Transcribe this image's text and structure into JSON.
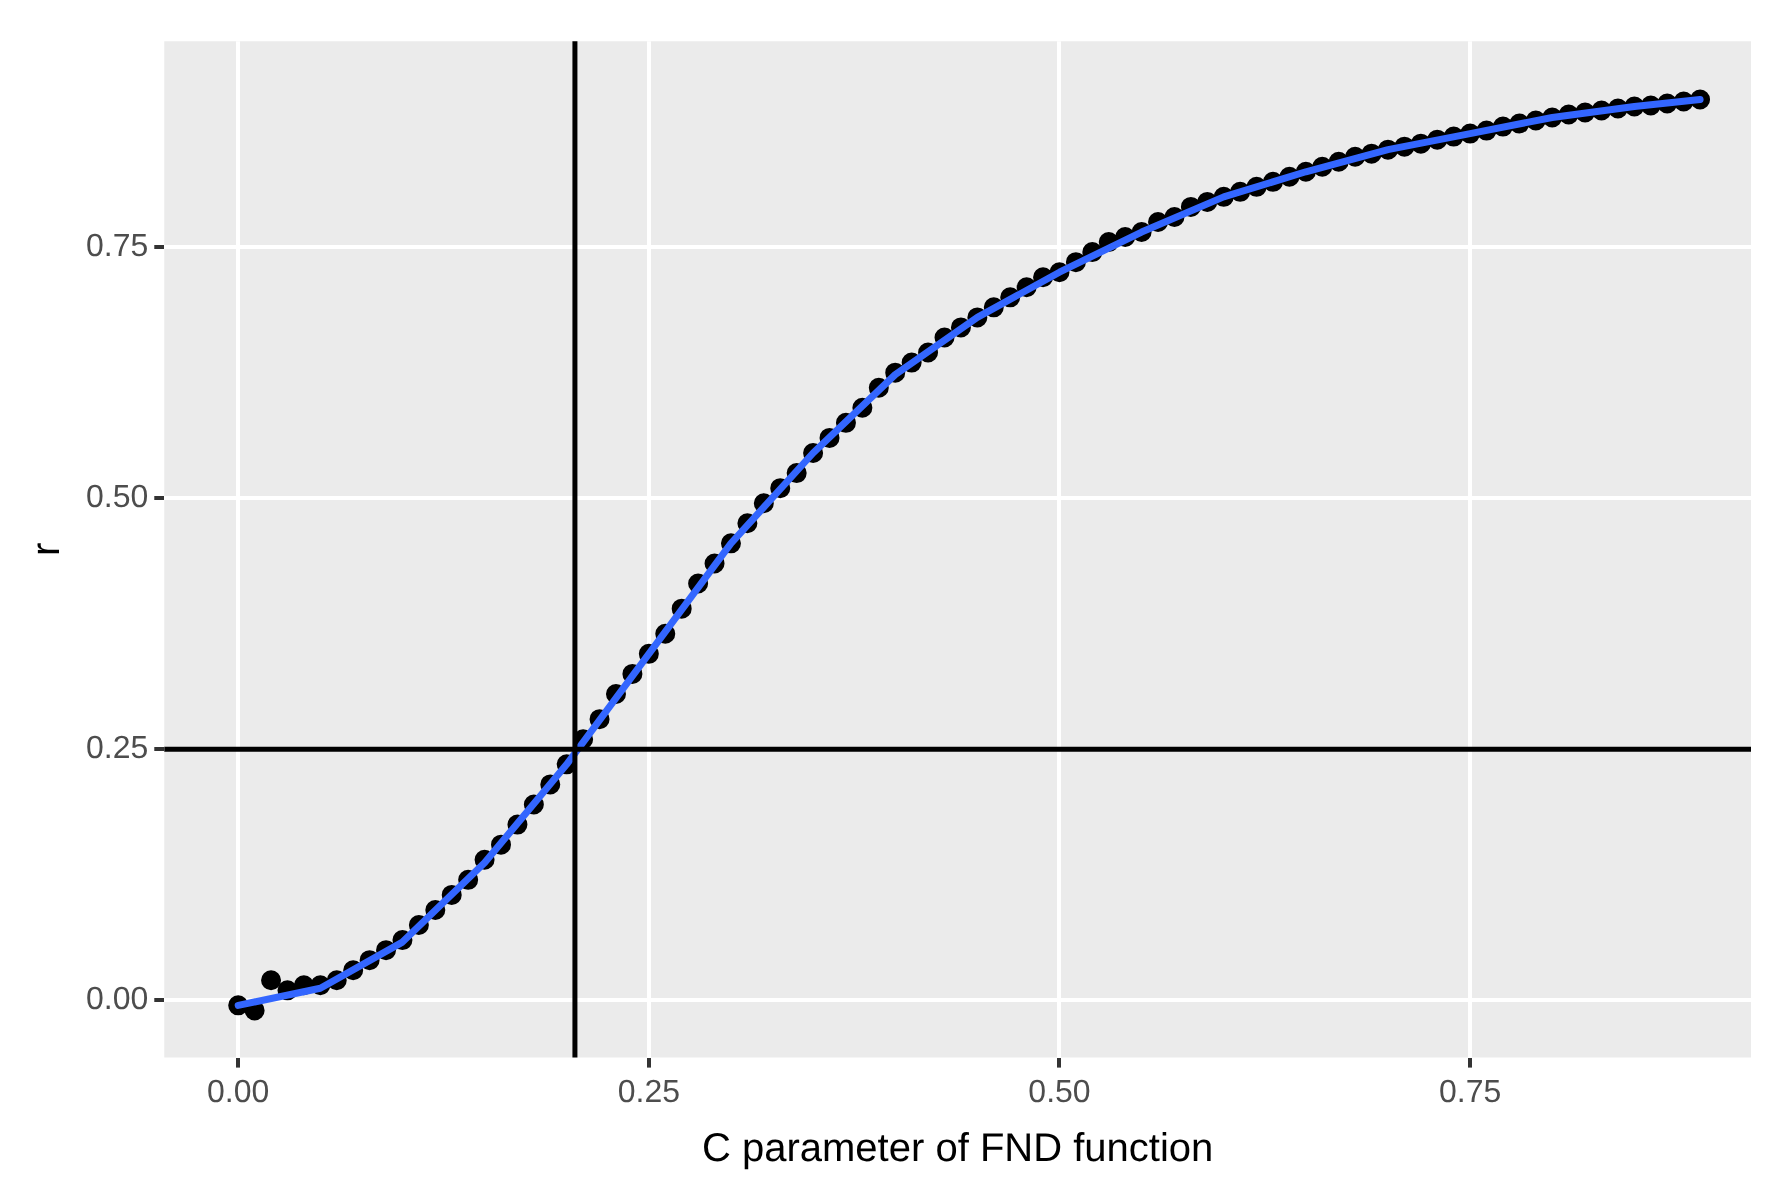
{
  "chart_data": {
    "type": "scatter",
    "xlabel": "C parameter of FND function",
    "ylabel": "r",
    "xlim": [
      -0.045,
      0.921
    ],
    "ylim": [
      -0.057,
      0.955
    ],
    "xticks": [
      {
        "value": 0,
        "label": "0.00"
      },
      0.25,
      {
        "value": 0.5,
        "label": "0.50"
      },
      0.75
    ],
    "yticks": [
      {
        "value": 0,
        "label": "0.00"
      },
      0.25,
      {
        "value": 0.5,
        "label": "0.50"
      },
      0.75
    ],
    "grid": true,
    "legend": false,
    "ref_lines": [
      {
        "axis": "x",
        "value": 0.205,
        "color": "#000000"
      },
      {
        "axis": "y",
        "value": 0.25,
        "color": "#000000"
      }
    ],
    "series": [
      {
        "type": "scatter",
        "marker": "circle",
        "color": "#000000",
        "x": [
          0,
          0.01,
          0.02,
          0.03,
          0.04,
          0.05,
          0.06,
          0.07,
          0.08,
          0.09,
          0.1,
          0.11,
          0.12,
          0.13,
          0.14,
          0.15,
          0.16,
          0.17,
          0.18,
          0.19,
          0.2,
          0.21,
          0.22,
          0.23,
          0.24,
          0.25,
          0.26,
          0.27,
          0.28,
          0.29,
          0.3,
          0.31,
          0.32,
          0.33,
          0.34,
          0.35,
          0.36,
          0.37,
          0.38,
          0.39,
          0.4,
          0.41,
          0.42,
          0.43,
          0.44,
          0.45,
          0.46,
          0.47,
          0.48,
          0.49,
          0.5,
          0.51,
          0.52,
          0.53,
          0.54,
          0.55,
          0.56,
          0.57,
          0.58,
          0.59,
          0.6,
          0.61,
          0.62,
          0.63,
          0.64,
          0.65,
          0.66,
          0.67,
          0.68,
          0.69,
          0.7,
          0.71,
          0.72,
          0.73,
          0.74,
          0.75,
          0.76,
          0.77,
          0.78,
          0.79,
          0.8,
          0.81,
          0.82,
          0.83,
          0.84,
          0.85,
          0.86,
          0.87,
          0.88,
          0.89
        ],
        "values": [
          -0.005,
          -0.01,
          0.02,
          0.01,
          0.015,
          0.015,
          0.02,
          0.03,
          0.04,
          0.05,
          0.06,
          0.075,
          0.09,
          0.105,
          0.12,
          0.14,
          0.155,
          0.175,
          0.195,
          0.215,
          0.235,
          0.26,
          0.28,
          0.305,
          0.325,
          0.345,
          0.365,
          0.39,
          0.415,
          0.435,
          0.455,
          0.475,
          0.495,
          0.51,
          0.525,
          0.545,
          0.56,
          0.575,
          0.59,
          0.61,
          0.625,
          0.635,
          0.645,
          0.66,
          0.67,
          0.68,
          0.69,
          0.7,
          0.71,
          0.72,
          0.725,
          0.735,
          0.745,
          0.755,
          0.76,
          0.765,
          0.775,
          0.78,
          0.79,
          0.795,
          0.8,
          0.805,
          0.81,
          0.815,
          0.82,
          0.825,
          0.83,
          0.835,
          0.84,
          0.843,
          0.847,
          0.85,
          0.853,
          0.857,
          0.86,
          0.863,
          0.866,
          0.87,
          0.873,
          0.876,
          0.879,
          0.882,
          0.884,
          0.886,
          0.888,
          0.89,
          0.891,
          0.893,
          0.895,
          0.897
        ]
      },
      {
        "type": "line",
        "color": "#3366ff",
        "x": [
          0,
          0.05,
          0.1,
          0.15,
          0.2,
          0.25,
          0.3,
          0.35,
          0.4,
          0.45,
          0.5,
          0.55,
          0.6,
          0.65,
          0.7,
          0.75,
          0.8,
          0.85,
          0.89
        ],
        "values": [
          -0.005,
          0.012,
          0.058,
          0.137,
          0.235,
          0.345,
          0.455,
          0.545,
          0.623,
          0.68,
          0.725,
          0.765,
          0.8,
          0.825,
          0.847,
          0.863,
          0.879,
          0.89,
          0.897
        ]
      }
    ]
  }
}
